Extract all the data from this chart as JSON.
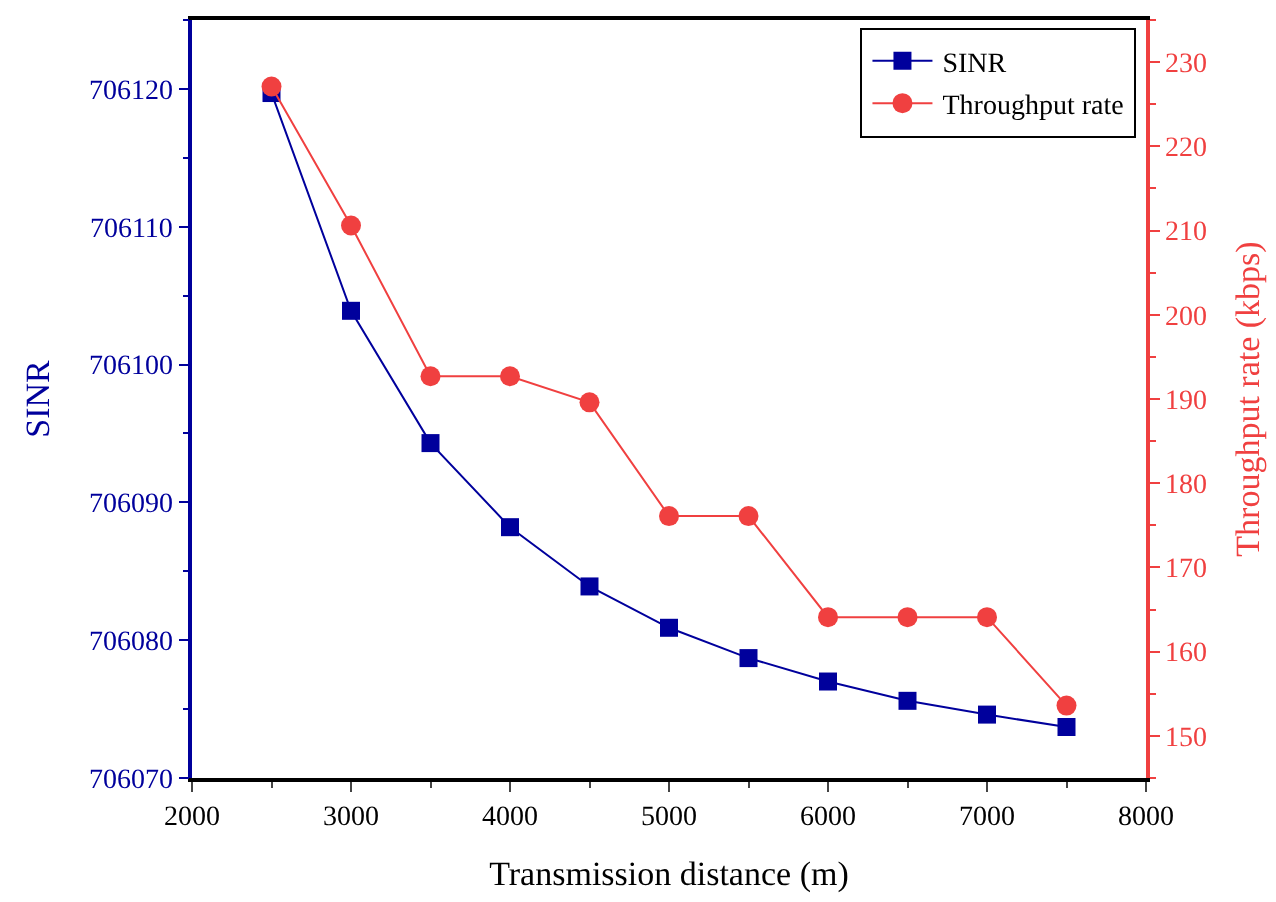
{
  "chart_data": {
    "type": "line",
    "xlabel": "Transmission distance (m)",
    "ylabel": "SINR",
    "y2label": "Throughput rate (kbps)",
    "x": [
      2500,
      3000,
      3500,
      4000,
      4500,
      5000,
      5500,
      6000,
      6500,
      7000,
      7500
    ],
    "series": [
      {
        "name": "SINR",
        "color": "#00009c",
        "marker": "square",
        "values": [
          706119.7,
          706103.9,
          706094.3,
          706088.2,
          706083.9,
          706080.9,
          706078.7,
          706077.0,
          706075.6,
          706074.6,
          706073.7
        ]
      },
      {
        "name": "Throughput rate",
        "color": "#f04040",
        "marker": "circle",
        "axis": "y2",
        "values": [
          227.1,
          210.6,
          192.7,
          192.7,
          189.6,
          176.1,
          176.1,
          164.1,
          164.1,
          164.1,
          153.6
        ]
      }
    ],
    "xlim": [
      2000,
      8000
    ],
    "xticks": [
      2000,
      3000,
      4000,
      5000,
      6000,
      7000,
      8000
    ],
    "ylim": [
      706070,
      706125
    ],
    "yticks": [
      706070,
      706080,
      706090,
      706100,
      706110,
      706120
    ],
    "y2lim": [
      145,
      235
    ],
    "y2ticks": [
      150,
      160,
      170,
      180,
      190,
      200,
      210,
      220,
      230
    ],
    "legend": "top right",
    "line_style": "solid"
  }
}
